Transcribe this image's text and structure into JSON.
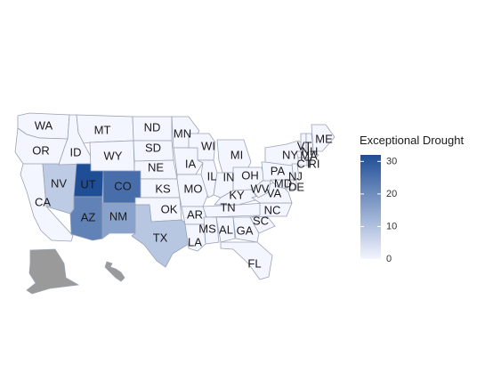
{
  "legend": {
    "title": "Exceptional Drought",
    "min": 0,
    "max": 32,
    "ticks": [
      "0",
      "10",
      "20",
      "30"
    ],
    "color_low": "#f3f5ff",
    "color_high": "#1f4e96"
  },
  "colors": {
    "background": "#ffffff",
    "state_border": "#9aa3b3",
    "grey_region": "#9a9a9a"
  },
  "map": {
    "states": [
      {
        "id": "WA",
        "label": "WA",
        "value": 0
      },
      {
        "id": "OR",
        "label": "OR",
        "value": 0
      },
      {
        "id": "CA",
        "label": "CA",
        "value": 0
      },
      {
        "id": "NV",
        "label": "NV",
        "value": 8
      },
      {
        "id": "ID",
        "label": "ID",
        "value": 0
      },
      {
        "id": "MT",
        "label": "MT",
        "value": 0
      },
      {
        "id": "WY",
        "label": "WY",
        "value": 0
      },
      {
        "id": "UT",
        "label": "UT",
        "value": 33
      },
      {
        "id": "CO",
        "label": "CO",
        "value": 26
      },
      {
        "id": "AZ",
        "label": "AZ",
        "value": 22
      },
      {
        "id": "NM",
        "label": "NM",
        "value": 16
      },
      {
        "id": "ND",
        "label": "ND",
        "value": 0
      },
      {
        "id": "SD",
        "label": "SD",
        "value": 0
      },
      {
        "id": "NE",
        "label": "NE",
        "value": 0
      },
      {
        "id": "KS",
        "label": "KS",
        "value": 0
      },
      {
        "id": "OK",
        "label": "OK",
        "value": 0
      },
      {
        "id": "TX",
        "label": "TX",
        "value": 9
      },
      {
        "id": "MN",
        "label": "MN",
        "value": 0
      },
      {
        "id": "IA",
        "label": "IA",
        "value": 0
      },
      {
        "id": "MO",
        "label": "MO",
        "value": 0
      },
      {
        "id": "AR",
        "label": "AR",
        "value": 0
      },
      {
        "id": "LA",
        "label": "LA",
        "value": 0
      },
      {
        "id": "WI",
        "label": "WI",
        "value": 0
      },
      {
        "id": "IL",
        "label": "IL",
        "value": 0
      },
      {
        "id": "MI",
        "label": "MI",
        "value": 0
      },
      {
        "id": "IN",
        "label": "IN",
        "value": 0
      },
      {
        "id": "OH",
        "label": "OH",
        "value": 0
      },
      {
        "id": "KY",
        "label": "KY",
        "value": 0
      },
      {
        "id": "TN",
        "label": "TN",
        "value": 0
      },
      {
        "id": "MS",
        "label": "MS",
        "value": 0
      },
      {
        "id": "AL",
        "label": "AL",
        "value": 0
      },
      {
        "id": "GA",
        "label": "GA",
        "value": 0
      },
      {
        "id": "FL",
        "label": "FL",
        "value": 0
      },
      {
        "id": "SC",
        "label": "SC",
        "value": 0
      },
      {
        "id": "NC",
        "label": "NC",
        "value": 0
      },
      {
        "id": "VA",
        "label": "VA",
        "value": 0
      },
      {
        "id": "WV",
        "label": "WV",
        "value": 0
      },
      {
        "id": "PA",
        "label": "PA",
        "value": 0
      },
      {
        "id": "NY",
        "label": "NY",
        "value": 0
      },
      {
        "id": "MD",
        "label": "MD",
        "value": 0
      },
      {
        "id": "DE",
        "label": "DE",
        "value": 0
      },
      {
        "id": "NJ",
        "label": "NJ",
        "value": 0
      },
      {
        "id": "CT",
        "label": "CT",
        "value": 0
      },
      {
        "id": "RI",
        "label": "RI",
        "value": 0
      },
      {
        "id": "MA",
        "label": "MA",
        "value": 0
      },
      {
        "id": "VT",
        "label": "VT",
        "value": 0
      },
      {
        "id": "NH",
        "label": "NH",
        "value": 0
      },
      {
        "id": "ME",
        "label": "ME",
        "value": 0
      },
      {
        "id": "AK",
        "label": "",
        "value": 0
      },
      {
        "id": "HI",
        "label": "",
        "value": 0
      }
    ]
  }
}
